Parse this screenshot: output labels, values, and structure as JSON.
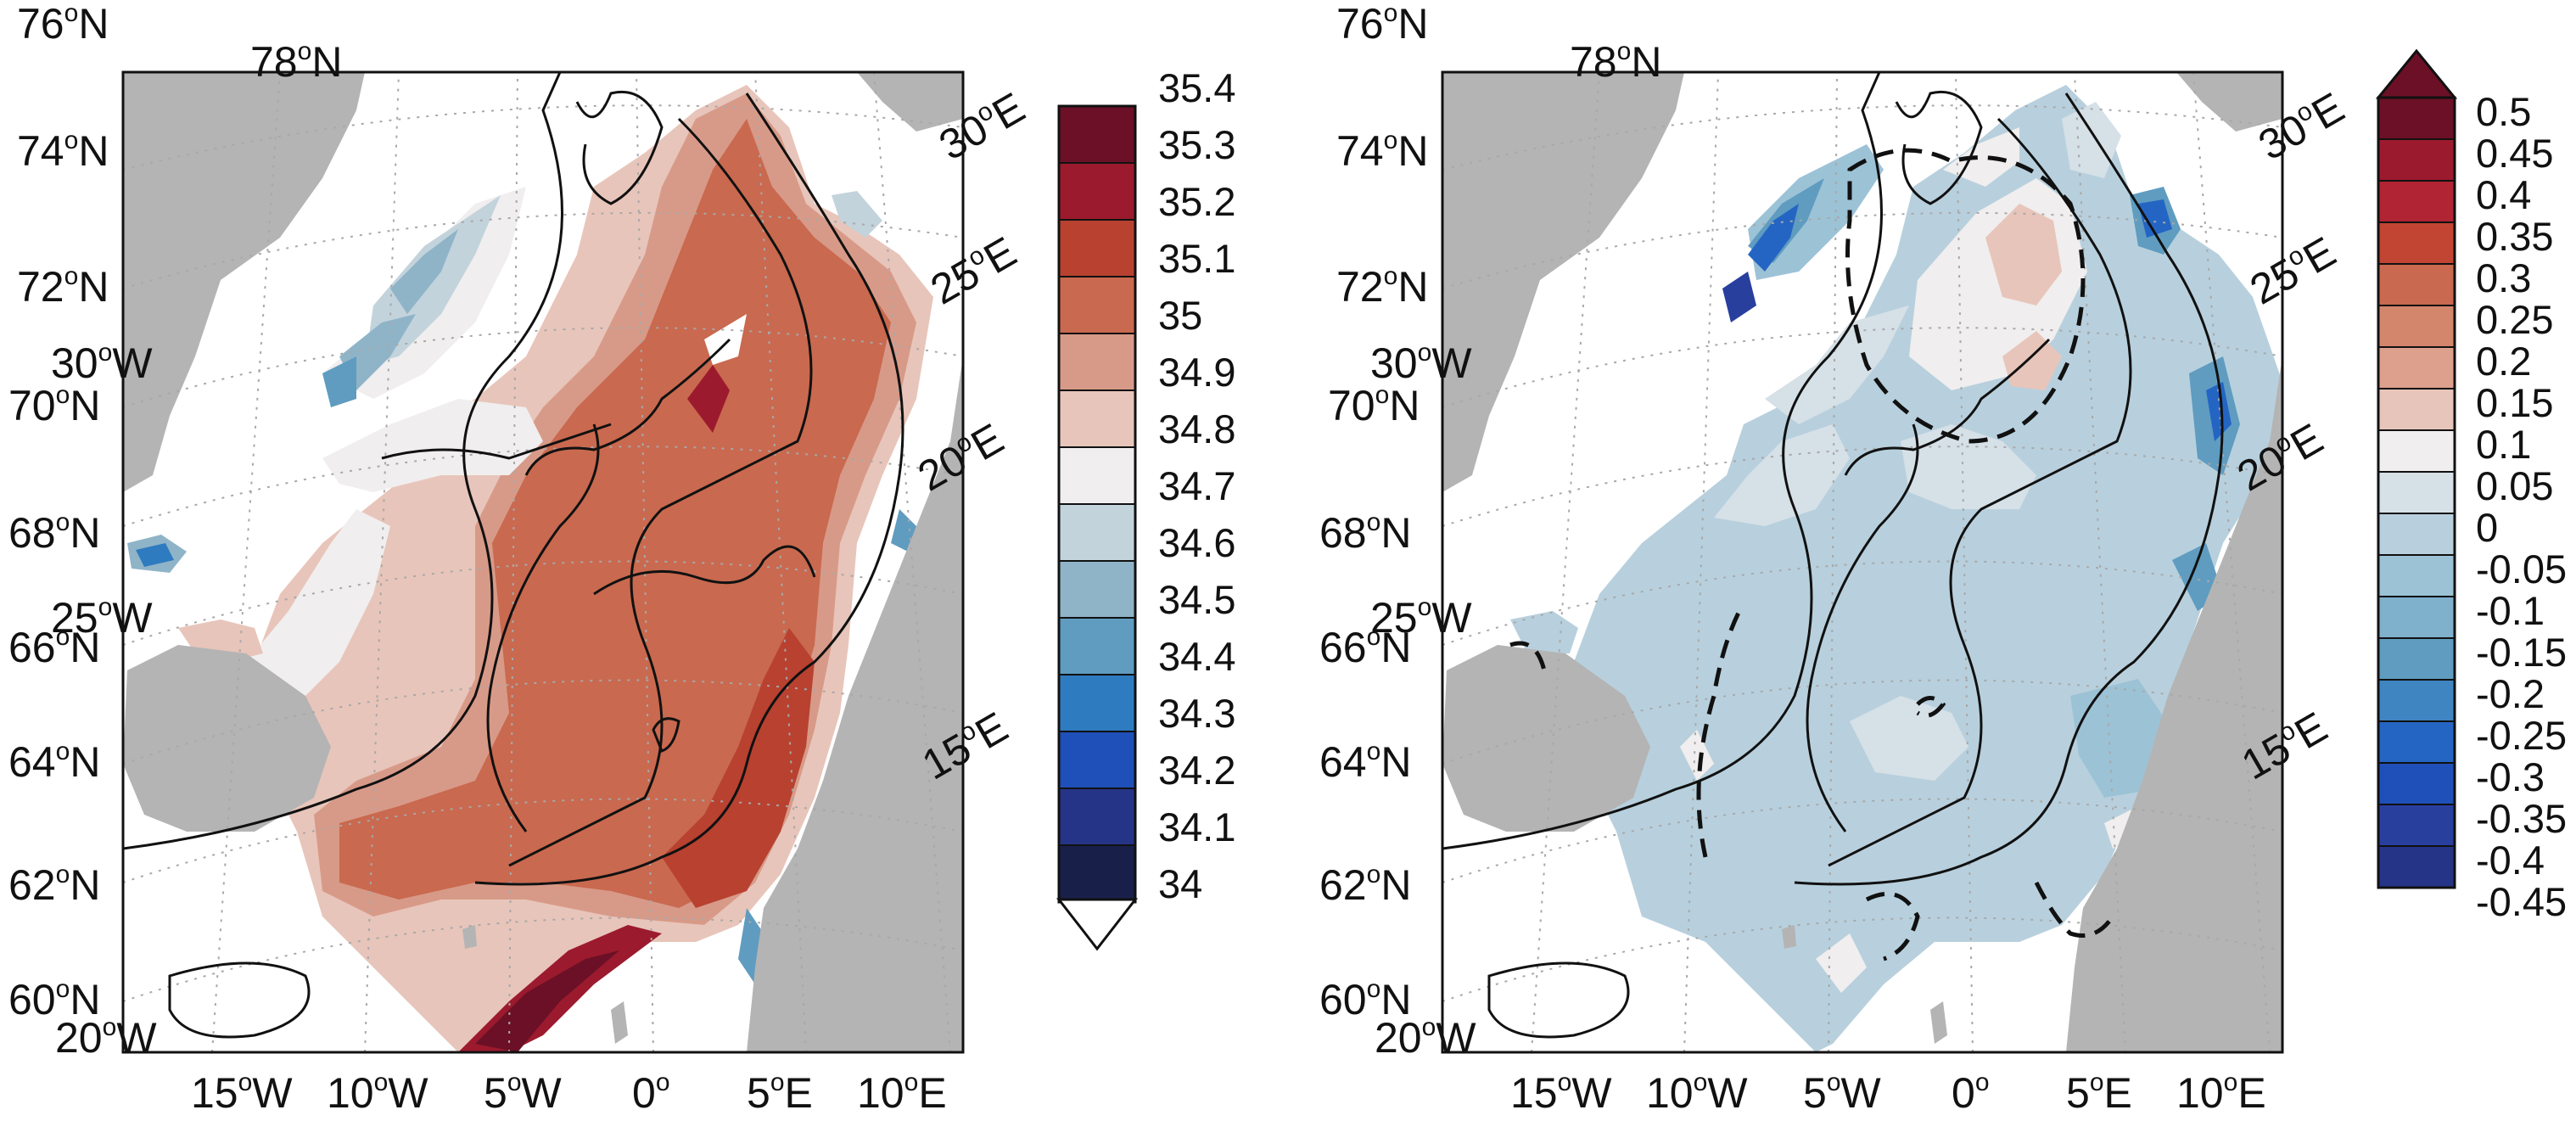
{
  "panels": [
    {
      "id": "salinity",
      "lat_labels": [
        "76",
        "74",
        "72",
        "70",
        "68",
        "66",
        "64",
        "62",
        "60"
      ],
      "lon_left_labels": [
        "78",
        "30",
        "25",
        "20"
      ],
      "lon_left_hemis": [
        "N",
        "W",
        "W",
        "W"
      ],
      "lon_bottom_labels": [
        "15",
        "10",
        "5",
        "0",
        "5",
        "10"
      ],
      "lon_bottom_hemis": [
        "W",
        "W",
        "W",
        "",
        "E",
        "E"
      ],
      "lon_right_labels": [
        "30",
        "25",
        "20",
        "15"
      ],
      "lon_right_hemis": [
        "E",
        "E",
        "E",
        "E"
      ],
      "colorbar": {
        "ticks": [
          "35.4",
          "35.3",
          "35.2",
          "35.1",
          "35",
          "34.9",
          "34.8",
          "34.7",
          "34.6",
          "34.5",
          "34.4",
          "34.3",
          "34.2",
          "34.1",
          "34"
        ],
        "colors": [
          "#6b1026",
          "#9c1a2e",
          "#b84130",
          "#c9694f",
          "#d89a88",
          "#e8c5ba",
          "#f0eeee",
          "#c3d3dc",
          "#8fb4c8",
          "#5f9cc0",
          "#2f7bc0",
          "#1f4fb8",
          "#253486",
          "#18204a"
        ],
        "extend": "min"
      }
    },
    {
      "id": "anomaly",
      "lat_labels": [
        "76",
        "74",
        "72",
        "70",
        "68",
        "66",
        "64",
        "62",
        "60"
      ],
      "lon_left_labels": [
        "78",
        "30",
        "25",
        "20"
      ],
      "lon_left_hemis": [
        "N",
        "W",
        "W",
        "W"
      ],
      "lon_bottom_labels": [
        "15",
        "10",
        "5",
        "0",
        "5",
        "10"
      ],
      "lon_bottom_hemis": [
        "W",
        "W",
        "W",
        "",
        "E",
        "E"
      ],
      "lon_right_labels": [
        "30",
        "25",
        "20",
        "15"
      ],
      "lon_right_hemis": [
        "E",
        "E",
        "E",
        "E"
      ],
      "colorbar": {
        "ticks": [
          "0.5",
          "0.45",
          "0.4",
          "0.35",
          "0.3",
          "0.25",
          "0.2",
          "0.15",
          "0.1",
          "0.05",
          "0",
          "-0.05",
          "-0.1",
          "-0.15",
          "-0.2",
          "-0.25",
          "-0.3",
          "-0.35",
          "-0.4",
          "-0.45"
        ],
        "colors": [
          "#6b1026",
          "#9c1a2e",
          "#b02433",
          "#c24433",
          "#c9694f",
          "#d3866c",
          "#dca08c",
          "#e8c5ba",
          "#f0eeee",
          "#d6e0e7",
          "#b8d0dd",
          "#9cc2d6",
          "#7fb0cc",
          "#5f9cc0",
          "#3f85c2",
          "#2465c4",
          "#1f4fb8",
          "#283f9e",
          "#253486"
        ],
        "extend": "max"
      }
    }
  ],
  "colors": {
    "land": "#b4b4b4",
    "sea": "#ffffff",
    "contour": "#111111",
    "grid": "#a8a8a8"
  }
}
